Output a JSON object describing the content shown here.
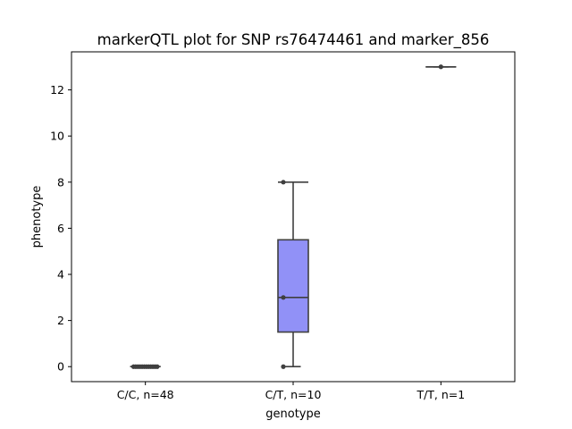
{
  "chart_data": {
    "type": "box",
    "title": "markerQTL plot for SNP rs76474461 and marker_856",
    "xlabel": "genotype",
    "ylabel": "phenotype",
    "ylim": [
      -0.65,
      13.65
    ],
    "yticks": [
      0,
      2,
      4,
      6,
      8,
      10,
      12
    ],
    "grid": false,
    "box_color": "#9191f7",
    "edge_color": "#3f3f3f",
    "categories": [
      "C/C, n=48",
      "C/T, n=10",
      "T/T, n=1"
    ],
    "boxes": [
      {
        "category": "C/C, n=48",
        "min": 0,
        "q1": 0,
        "median": 0,
        "q3": 0,
        "max": 0,
        "points": [
          0,
          0,
          0,
          0,
          0,
          0,
          0,
          0,
          0,
          0,
          0,
          0
        ]
      },
      {
        "category": "C/T, n=10",
        "min": 0,
        "q1": 1.5,
        "median": 3,
        "q3": 5.5,
        "max": 8,
        "points": [
          8,
          3,
          0
        ]
      },
      {
        "category": "T/T, n=1",
        "min": 13,
        "q1": 13,
        "median": 13,
        "q3": 13,
        "max": 13,
        "points": [
          13
        ]
      }
    ]
  }
}
